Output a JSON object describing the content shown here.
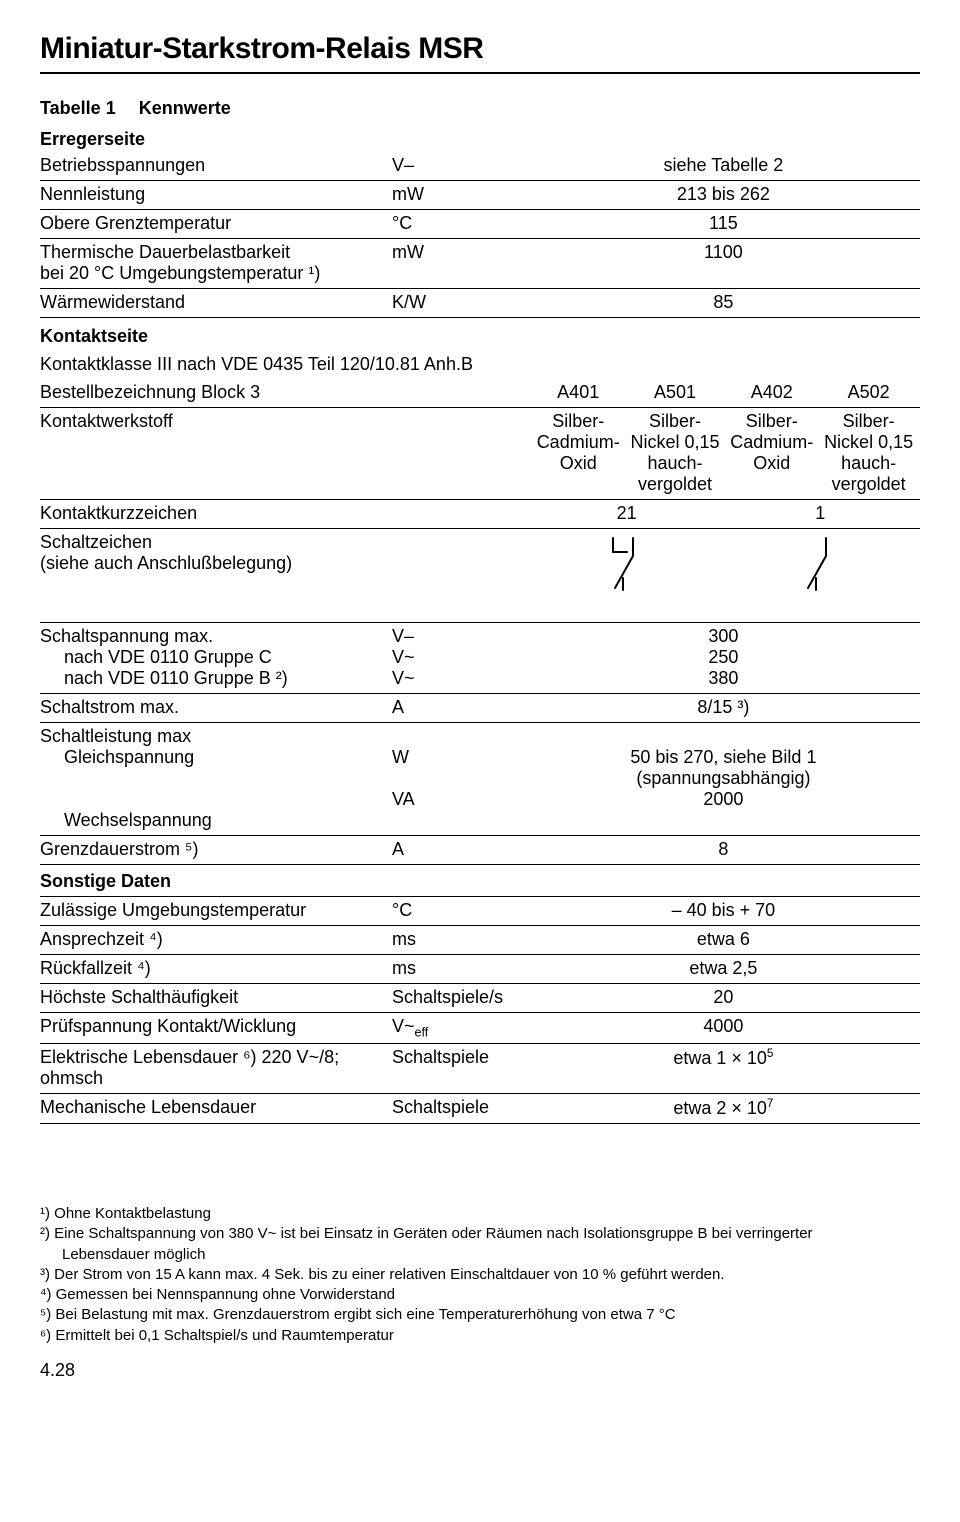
{
  "title": "Miniatur-Starkstrom-Relais MSR",
  "caption": {
    "num": "Tabelle 1",
    "label": "Kennwerte"
  },
  "sections": {
    "erreger": "Erregerseite",
    "kontakt": "Kontaktseite",
    "sonst": "Sonstige Daten"
  },
  "rows": {
    "r1": {
      "label": "Betriebsspannungen",
      "unit": "V–",
      "value": "siehe Tabelle 2"
    },
    "r2": {
      "label": "Nennleistung",
      "unit": "mW",
      "value": "213 bis 262"
    },
    "r3": {
      "label": "Obere Grenztemperatur",
      "unit": "°C",
      "value": "115"
    },
    "r4": {
      "label1": "Thermische Dauerbelastbarkeit",
      "label2": "bei 20 °C Umgebungstemperatur ¹)",
      "unit": "mW",
      "value": "1100"
    },
    "r5": {
      "label": "Wärmewiderstand",
      "unit": "K/W",
      "value": "85"
    },
    "r6": {
      "label": "Kontaktklasse III nach VDE 0435 Teil 120/10.81 Anh.B"
    },
    "r7": {
      "label": "Bestellbezeichnung Block 3",
      "c3": "A401",
      "c4": "A501",
      "c5": "A402",
      "c6": "A502"
    },
    "r8": {
      "label": "Kontaktwerkstoff",
      "c3a": "Silber-",
      "c3b": "Cadmium-",
      "c3c": "Oxid",
      "c4a": "Silber-",
      "c4b": "Nickel 0,15",
      "c4c": "hauch-",
      "c4d": "vergoldet",
      "c5a": "Silber-",
      "c5b": "Cadmium-",
      "c5c": "Oxid",
      "c6a": "Silber-",
      "c6b": "Nickel 0,15",
      "c6c": "hauch-",
      "c6d": "vergoldet"
    },
    "r9": {
      "label": "Kontaktkurzzeichen",
      "v1": "21",
      "v2": "1"
    },
    "r10": {
      "label1": "Schaltzeichen",
      "label2": "(siehe auch Anschlußbelegung)"
    },
    "r11": {
      "l1": "Schaltspannung max.",
      "l2": "nach VDE 0110 Gruppe C",
      "l3": "nach VDE 0110 Gruppe B ²)",
      "u1": "V–",
      "u2": "V~",
      "u3": "V~",
      "v1": "300",
      "v2": "250",
      "v3": "380"
    },
    "r12": {
      "label": "Schaltstrom max.",
      "unit": "A",
      "value": "8/15 ³)"
    },
    "r13": {
      "l1": "Schaltleistung max",
      "l2": "Gleichspannung",
      "l3": "Wechselspannung",
      "u2": "W",
      "u3": "VA",
      "v2a": "50 bis 270, siehe Bild 1",
      "v2b": "(spannungsabhängig)",
      "v3": "2000"
    },
    "r14": {
      "label": "Grenzdauerstrom ⁵)",
      "unit": "A",
      "value": "8"
    },
    "r15": {
      "label": "Zulässige Umgebungstemperatur",
      "unit": "°C",
      "value": "– 40 bis + 70"
    },
    "r16": {
      "label": "Ansprechzeit ⁴)",
      "unit": "ms",
      "value": "etwa 6"
    },
    "r17": {
      "label": "Rückfallzeit ⁴)",
      "unit": "ms",
      "value": "etwa 2,5"
    },
    "r18": {
      "label": "Höchste Schalthäufigkeit",
      "unit": "Schaltspiele/s",
      "value": "20"
    },
    "r19": {
      "label": "Prüfspannung Kontakt/Wicklung",
      "unit_html": "V~<sub>eff</sub>",
      "value": "4000"
    },
    "r20": {
      "label1": "Elektrische Lebensdauer ⁶) 220 V~/8;",
      "label2": "ohmsch",
      "unit": "Schaltspiele",
      "value_html": "etwa 1 × 10<sup>5</sup>"
    },
    "r21": {
      "label": "Mechanische Lebensdauer",
      "unit": "Schaltspiele",
      "value_html": "etwa 2 × 10<sup>7</sup>"
    }
  },
  "footnotes": {
    "f1": "¹) Ohne Kontaktbelastung",
    "f2": "²) Eine Schaltspannung von 380 V~ ist bei Einsatz in Geräten oder Räumen nach Isolationsgruppe B bei verringerter",
    "f2b": "Lebensdauer möglich",
    "f3": "³) Der Strom von 15 A kann max. 4 Sek. bis zu einer relativen Einschaltdauer von 10 % geführt werden.",
    "f4": "⁴) Gemessen bei Nennspannung ohne Vorwiderstand",
    "f5": "⁵) Bei Belastung mit max. Grenzdauerstrom ergibt sich eine Temperaturerhöhung von etwa 7 °C",
    "f6": "⁶) Ermittelt bei 0,1 Schaltspiel/s und Raumtemperatur"
  },
  "pagenum": "4.28"
}
